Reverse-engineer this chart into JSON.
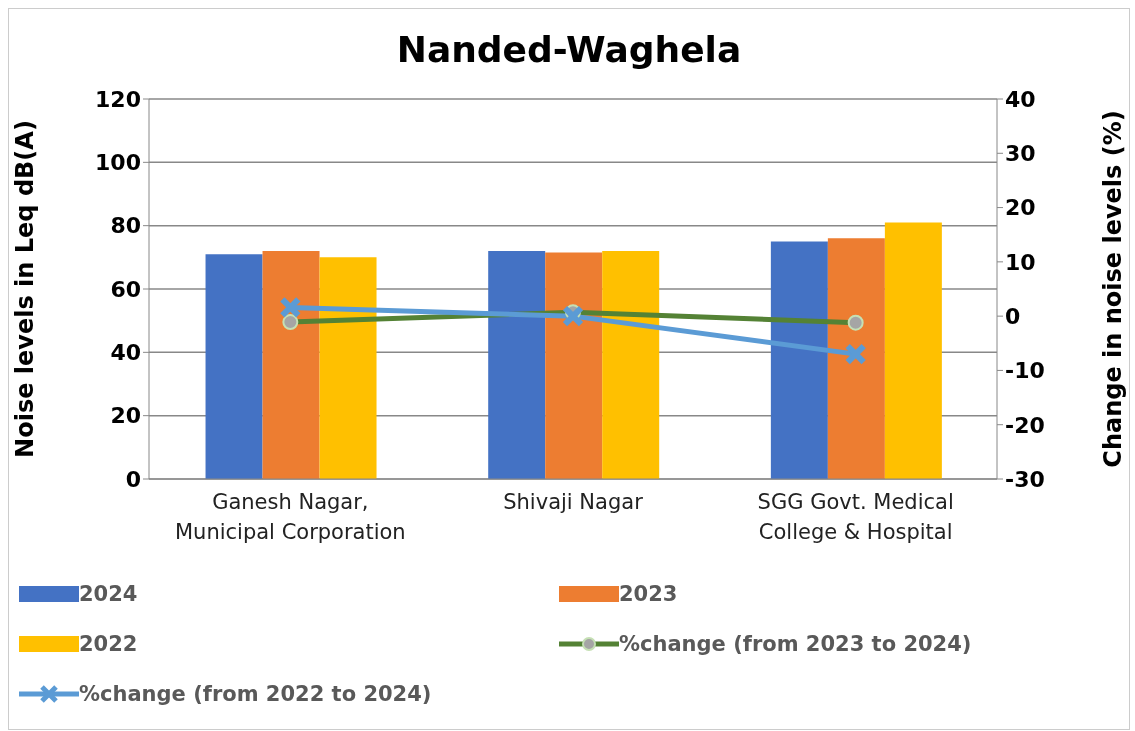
{
  "chart_data": {
    "type": "bar",
    "title": "Nanded-Waghela",
    "ylabel": "Noise levels in Leq dB(A)",
    "y2label": "Change in noise levels (%)",
    "categories": [
      "Ganesh Nagar, Municipal Corporation",
      "Shivaji Nagar",
      "SGG Govt. Medical College & Hospital"
    ],
    "series": [
      {
        "name": "2024",
        "color": "#4472c4",
        "values": [
          71,
          72,
          75
        ]
      },
      {
        "name": "2023",
        "color": "#ed7d31",
        "values": [
          72,
          71.5,
          76
        ]
      },
      {
        "name": "2022",
        "color": "#ffc000",
        "values": [
          70,
          72,
          81
        ]
      },
      {
        "name": "%change (from 2023 to 2024)",
        "type": "line",
        "axis": "y2",
        "color": "#548235",
        "marker": "circle",
        "values": [
          -1.1,
          0.7,
          -1.2
        ]
      },
      {
        "name": "%change (from 2022 to 2024)",
        "type": "line",
        "axis": "y2",
        "color": "#5b9bd5",
        "marker": "cross",
        "values": [
          1.6,
          0,
          -7
        ]
      }
    ],
    "ylim": [
      0,
      120
    ],
    "yticks": [
      0,
      20,
      40,
      60,
      80,
      100,
      120
    ],
    "y2lim": [
      -30,
      40
    ],
    "y2ticks": [
      -30,
      -20,
      -10,
      0,
      10,
      20,
      30,
      40
    ],
    "grid": "y",
    "legend": "bottom"
  }
}
